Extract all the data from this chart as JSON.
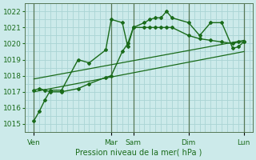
{
  "xlabel": "Pression niveau de la mer( hPa )",
  "bg_color": "#cceaea",
  "grid_color": "#aad4d4",
  "line_color": "#1a6b1a",
  "ylim": [
    1014.5,
    1022.5
  ],
  "yticks": [
    1015,
    1016,
    1017,
    1018,
    1019,
    1020,
    1021,
    1022
  ],
  "xlim": [
    -0.3,
    20.3
  ],
  "xtick_labels": [
    "Ven",
    "Mar",
    "Sam",
    "Dim",
    "Lun"
  ],
  "xtick_positions": [
    0.5,
    7.5,
    9.5,
    14.5,
    19.5
  ],
  "vline_positions": [
    0.5,
    7.5,
    9.5,
    14.5,
    19.5
  ],
  "series": [
    {
      "x": [
        0.5,
        1.0,
        1.5,
        2.0,
        3.0,
        4.5,
        5.5,
        7.0,
        7.5,
        8.5,
        9.0,
        9.5,
        10.5,
        11.0,
        11.5,
        12.0,
        12.5,
        13.0,
        14.5,
        15.5,
        16.5,
        17.5,
        18.5,
        19.0,
        19.5
      ],
      "y": [
        1015.2,
        1015.8,
        1016.5,
        1017.1,
        1017.1,
        1019.0,
        1018.8,
        1019.6,
        1021.5,
        1021.3,
        1019.8,
        1021.0,
        1021.3,
        1021.5,
        1021.6,
        1021.6,
        1022.0,
        1021.6,
        1021.3,
        1020.5,
        1021.3,
        1021.3,
        1019.7,
        1019.8,
        1020.1
      ],
      "marker": "D",
      "markersize": 2.0,
      "linewidth": 1.0,
      "linestyle": "-"
    },
    {
      "x": [
        0.5,
        1.0,
        1.5,
        2.0,
        3.0,
        4.5,
        5.5,
        7.0,
        7.5,
        8.5,
        9.0,
        9.5,
        10.5,
        11.0,
        11.5,
        12.0,
        12.5,
        13.0,
        14.5,
        15.5,
        16.5,
        17.5,
        18.5,
        19.0,
        19.5
      ],
      "y": [
        1017.1,
        1017.2,
        1017.1,
        1017.0,
        1017.0,
        1017.2,
        1017.5,
        1017.9,
        1018.0,
        1019.5,
        1020.0,
        1021.0,
        1021.0,
        1021.0,
        1021.0,
        1021.0,
        1021.0,
        1021.0,
        1020.5,
        1020.3,
        1020.2,
        1020.1,
        1020.0,
        1020.1,
        1020.1
      ],
      "marker": "D",
      "markersize": 2.0,
      "linewidth": 1.0,
      "linestyle": "-"
    },
    {
      "x": [
        0.5,
        19.5
      ],
      "y": [
        1017.0,
        1019.5
      ],
      "marker": null,
      "markersize": 0,
      "linewidth": 0.9,
      "linestyle": "-"
    },
    {
      "x": [
        0.5,
        19.5
      ],
      "y": [
        1017.8,
        1020.2
      ],
      "marker": null,
      "markersize": 0,
      "linewidth": 0.9,
      "linestyle": "-"
    }
  ]
}
